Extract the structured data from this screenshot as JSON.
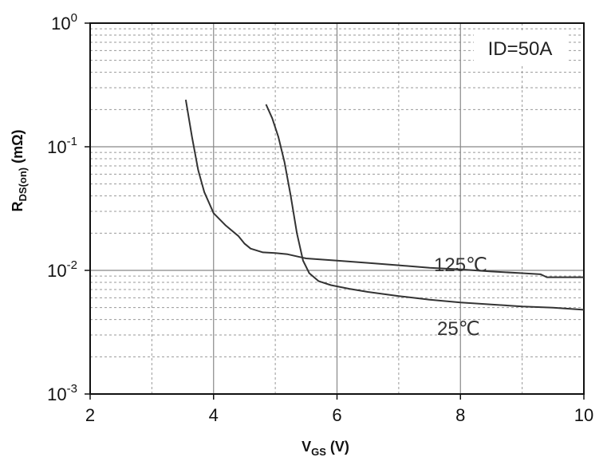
{
  "chart_data": {
    "type": "line",
    "title": "",
    "xlabel": "V",
    "xlabel_sub": "GS",
    "xlabel_unit": " (V)",
    "ylabel": "R",
    "ylabel_sub": "DS(on)",
    "ylabel_unit": " (mΩ)",
    "xlim": [
      2,
      10
    ],
    "ylim": [
      0.001,
      1
    ],
    "y_scale": "log",
    "grid": true,
    "x_ticks": [
      2,
      4,
      6,
      8,
      10
    ],
    "x_tick_labels": [
      "2",
      "4",
      "6",
      "8",
      "10"
    ],
    "y_ticks": [
      0.001,
      0.01,
      0.1,
      1
    ],
    "y_tick_labels": [
      {
        "base": "10",
        "exp": "-3"
      },
      {
        "base": "10",
        "exp": "-2"
      },
      {
        "base": "10",
        "exp": "-1"
      },
      {
        "base": "10",
        "exp": "0"
      }
    ],
    "annotations": [
      {
        "text": "ID=50A",
        "position": "top-right"
      }
    ],
    "series": [
      {
        "label": "125℃",
        "x": [
          3.55,
          3.65,
          3.75,
          3.85,
          4.0,
          4.2,
          4.4,
          4.5,
          4.6,
          4.8,
          5.0,
          5.2,
          5.5,
          6.0,
          6.5,
          7.0,
          7.5,
          8.0,
          8.5,
          9.0,
          9.3,
          9.4,
          10.0
        ],
        "y": [
          0.24,
          0.12,
          0.065,
          0.043,
          0.029,
          0.023,
          0.019,
          0.0165,
          0.015,
          0.014,
          0.0138,
          0.0135,
          0.0125,
          0.012,
          0.0115,
          0.011,
          0.0105,
          0.0102,
          0.0098,
          0.0095,
          0.0093,
          0.0088,
          0.0088
        ]
      },
      {
        "label": "25℃",
        "x": [
          4.85,
          4.95,
          5.05,
          5.15,
          5.25,
          5.35,
          5.45,
          5.55,
          5.7,
          5.9,
          6.2,
          6.5,
          7.0,
          7.5,
          8.0,
          8.5,
          9.0,
          9.5,
          10.0
        ],
        "y": [
          0.22,
          0.17,
          0.12,
          0.075,
          0.04,
          0.02,
          0.012,
          0.0095,
          0.0082,
          0.0076,
          0.0071,
          0.0067,
          0.0062,
          0.0058,
          0.0055,
          0.0053,
          0.0051,
          0.005,
          0.0048
        ]
      }
    ]
  }
}
